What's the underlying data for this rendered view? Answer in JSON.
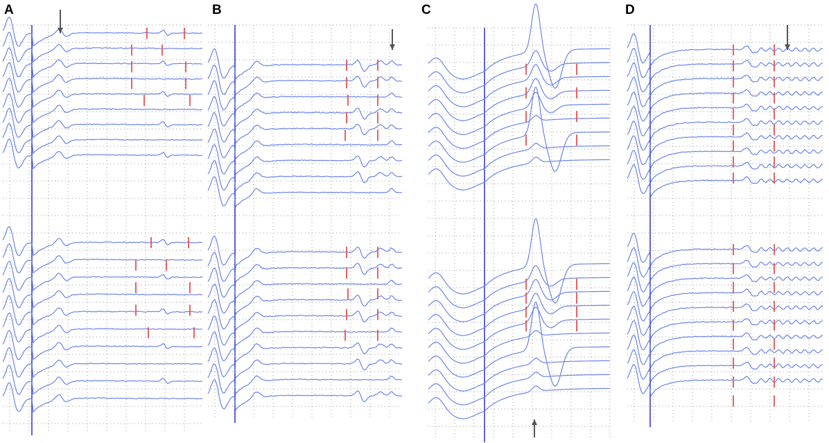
{
  "figure": {
    "panels": [
      {
        "id": "A",
        "label": "A",
        "arrow_direction": "down",
        "traces_top": 9,
        "traces_bottom": 10
      },
      {
        "id": "B",
        "label": "B",
        "arrow_direction": "down",
        "traces_top": 9,
        "traces_bottom": 10
      },
      {
        "id": "C",
        "label": "C",
        "arrow_direction": "up",
        "traces_top": 9,
        "traces_bottom": 10
      },
      {
        "id": "D",
        "label": "D",
        "arrow_direction": "down",
        "traces_top": 10,
        "traces_bottom": 10
      }
    ],
    "colors": {
      "trace": "#6b84e8",
      "vertical_marker": "#3a3ad8",
      "tick_marks": "#e85050",
      "grid_dots": "#9a9a9a",
      "arrow": "#555555"
    }
  }
}
